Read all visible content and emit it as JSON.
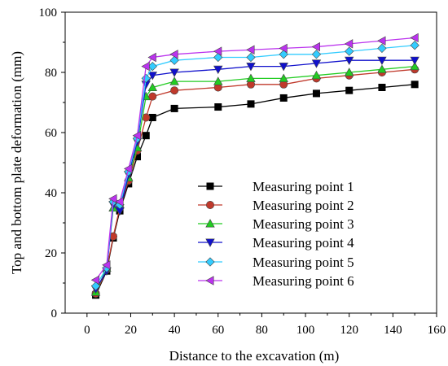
{
  "chart_data": {
    "type": "line",
    "title": "",
    "xlabel": "Distance to the excavation (m)",
    "ylabel": "Top and bottom plate deformation (mm)",
    "xlim": [
      -10,
      160
    ],
    "ylim": [
      0,
      100
    ],
    "xticks": [
      "0",
      "20",
      "40",
      "60",
      "80",
      "100",
      "120",
      "140",
      "160"
    ],
    "yticks": [
      "0",
      "20",
      "40",
      "60",
      "80",
      "100"
    ],
    "grid": false,
    "legend_position": "center-right",
    "x": [
      4,
      9,
      12,
      15,
      19,
      23,
      27,
      30,
      40,
      60,
      75,
      90,
      105,
      120,
      135,
      150
    ],
    "series": [
      {
        "name": "Measuring point 1",
        "marker": "square",
        "color": "#000000",
        "values": [
          6,
          14,
          25,
          34,
          43,
          52,
          59,
          65,
          68,
          68.5,
          69.5,
          71.5,
          73,
          74,
          75,
          76
        ]
      },
      {
        "name": "Measuring point 2",
        "marker": "circle",
        "color": "#c0392b",
        "values": [
          6.5,
          14.5,
          25.5,
          35,
          44,
          54,
          65,
          72,
          74,
          75,
          76,
          76,
          78,
          79,
          80,
          81
        ]
      },
      {
        "name": "Measuring point 3",
        "marker": "triangle-up",
        "color": "#22cc22",
        "values": [
          7,
          15,
          35,
          36,
          45,
          55,
          72,
          75,
          77,
          77,
          78,
          78,
          79,
          80,
          81,
          82
        ]
      },
      {
        "name": "Measuring point 4",
        "marker": "triangle-down",
        "color": "#1010cc",
        "values": [
          8,
          14,
          36,
          34,
          46,
          57,
          76,
          79,
          80,
          81,
          82,
          82,
          83,
          84,
          84,
          84
        ]
      },
      {
        "name": "Measuring point 5",
        "marker": "diamond",
        "color": "#33ccff",
        "values": [
          9,
          15,
          37,
          36,
          47,
          58,
          78,
          82,
          84,
          85,
          85,
          86,
          86,
          87,
          88,
          89
        ]
      },
      {
        "name": "Measuring point 6",
        "marker": "triangle-left",
        "color": "#bb33ee",
        "values": [
          11,
          16,
          38,
          37,
          48,
          59,
          82,
          85,
          86,
          87,
          87.5,
          88,
          88.5,
          89.5,
          90.5,
          91.5
        ]
      }
    ]
  }
}
